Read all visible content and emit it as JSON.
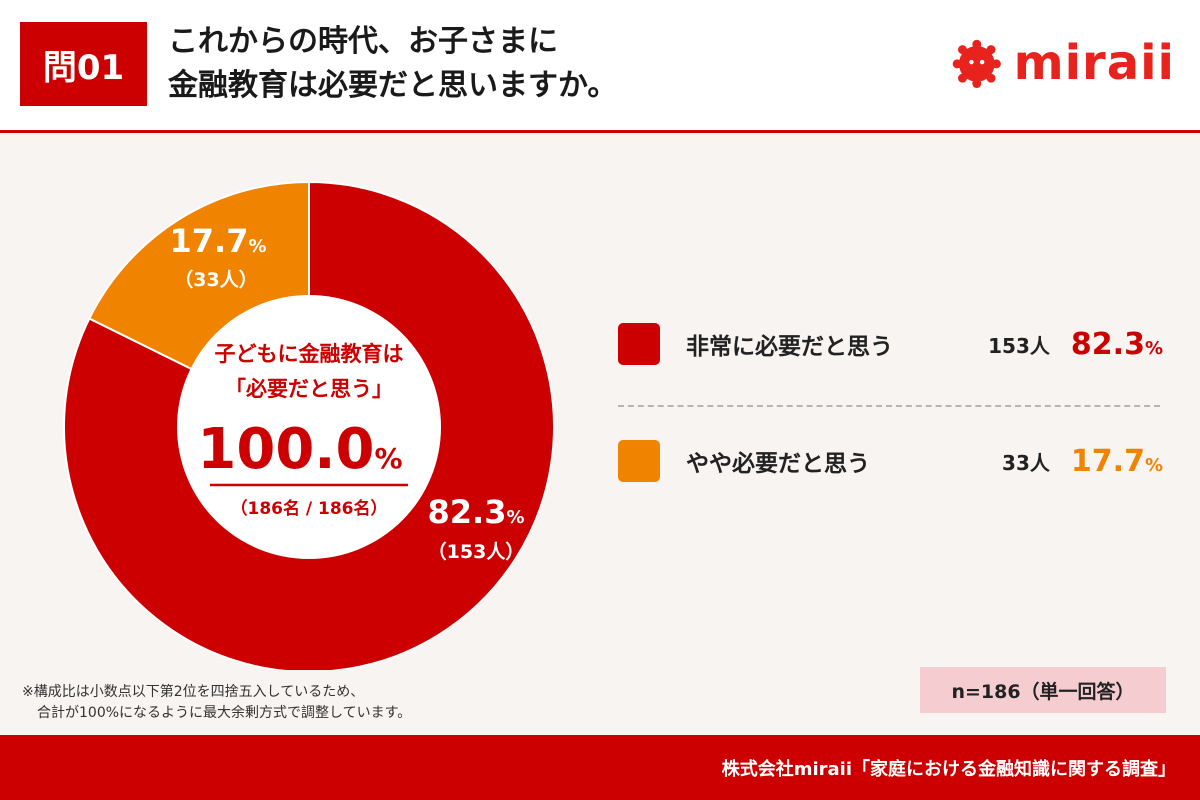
{
  "header": {
    "question_badge": "問01",
    "title_line1": "これからの時代、お子さまに",
    "title_line2": "金融教育は必要だと思いますか。",
    "logo_text": "miraii"
  },
  "chart_data": {
    "type": "pie",
    "donut": true,
    "slices": [
      {
        "label": "非常に必要だと思う",
        "value": 82.3,
        "count": 153,
        "count_label": "153人",
        "count_paren": "（153人）",
        "pct_text": "82.3",
        "unit": "%",
        "color": "#cc0000"
      },
      {
        "label": "やや必要だと思う",
        "value": 17.7,
        "count": 33,
        "count_label": "33人",
        "count_paren": "（33人）",
        "pct_text": "17.7",
        "unit": "%",
        "color": "#f08300"
      }
    ],
    "center": {
      "line1": "子どもに金融教育は",
      "line2": "「必要だと思う」",
      "value": "100.0",
      "unit": "%",
      "sub": "（186名 / 186名）"
    },
    "legend_position": "right"
  },
  "footnote": {
    "line1": "※構成比は小数点以下第2位を四捨五入しているため、",
    "line2": "合計が100%になるように最大余剰方式で調整しています。"
  },
  "sample_size": "n=186（単一回答）",
  "footer": {
    "source": "株式会社miraii「家庭における金融知識に関する調査」"
  },
  "colors": {
    "accent": "#cc0000",
    "orange": "#f08300",
    "logo": "#e8231e"
  }
}
